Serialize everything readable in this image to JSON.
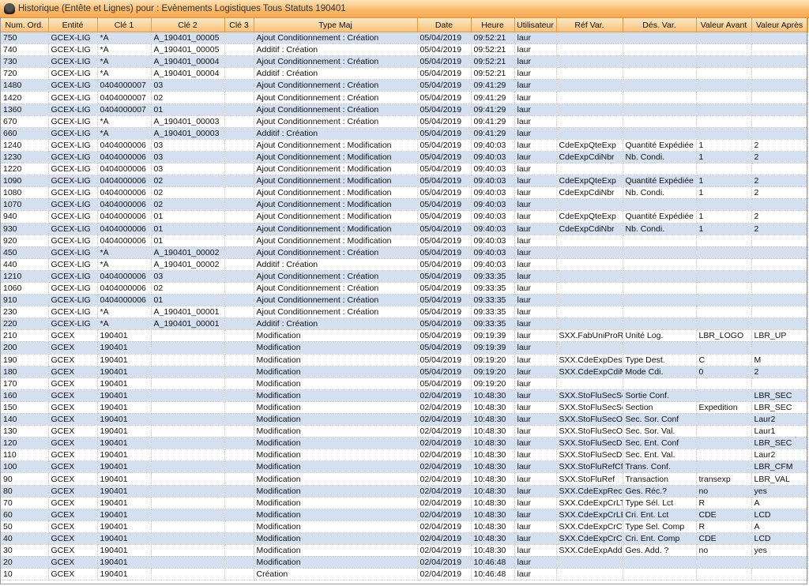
{
  "window": {
    "title": "Historique (Entête et Lignes) pour : Evènements  Logistiques Tous Statuts 190401",
    "icon": "app-hat-icon"
  },
  "colors": {
    "title_bar": "#f9b86a",
    "header": "#f8c27c",
    "row_alt": "#d4e0ef"
  },
  "columns": [
    "Num. Ord.",
    "Entité",
    "Clé 1",
    "Clé 2",
    "Clé 3",
    "Type Maj",
    "Date",
    "Heure",
    "Utilisateur",
    "Réf Var.",
    "Dés. Var.",
    "Valeur Avant",
    "Valeur Après"
  ],
  "rows": [
    [
      "750",
      "GCEX-LIG",
      "*A",
      "A_190401_00005",
      "",
      "Ajout Conditionnement : Création",
      "05/04/2019",
      "09:52:21",
      "laur",
      "",
      "",
      "",
      ""
    ],
    [
      "740",
      "GCEX-LIG",
      "*A",
      "A_190401_00005",
      "",
      "Additif : Création",
      "05/04/2019",
      "09:52:21",
      "laur",
      "",
      "",
      "",
      ""
    ],
    [
      "730",
      "GCEX-LIG",
      "*A",
      "A_190401_00004",
      "",
      "Ajout Conditionnement : Création",
      "05/04/2019",
      "09:52:21",
      "laur",
      "",
      "",
      "",
      ""
    ],
    [
      "720",
      "GCEX-LIG",
      "*A",
      "A_190401_00004",
      "",
      "Additif : Création",
      "05/04/2019",
      "09:52:21",
      "laur",
      "",
      "",
      "",
      ""
    ],
    [
      "1480",
      "GCEX-LIG",
      "0404000007",
      "03",
      "",
      "Ajout Conditionnement : Création",
      "05/04/2019",
      "09:41:29",
      "laur",
      "",
      "",
      "",
      ""
    ],
    [
      "1420",
      "GCEX-LIG",
      "0404000007",
      "02",
      "",
      "Ajout Conditionnement : Création",
      "05/04/2019",
      "09:41:29",
      "laur",
      "",
      "",
      "",
      ""
    ],
    [
      "1360",
      "GCEX-LIG",
      "0404000007",
      "01",
      "",
      "Ajout Conditionnement : Création",
      "05/04/2019",
      "09:41:29",
      "laur",
      "",
      "",
      "",
      ""
    ],
    [
      "670",
      "GCEX-LIG",
      "*A",
      "A_190401_00003",
      "",
      "Ajout Conditionnement : Création",
      "05/04/2019",
      "09:41:29",
      "laur",
      "",
      "",
      "",
      ""
    ],
    [
      "660",
      "GCEX-LIG",
      "*A",
      "A_190401_00003",
      "",
      "Additif : Création",
      "05/04/2019",
      "09:41:29",
      "laur",
      "",
      "",
      "",
      ""
    ],
    [
      "1240",
      "GCEX-LIG",
      "0404000006",
      "03",
      "",
      "Ajout Conditionnement : Modification",
      "05/04/2019",
      "09:40:03",
      "laur",
      "CdeExpQteExp",
      "Quantité Expédiée",
      "1",
      "2"
    ],
    [
      "1230",
      "GCEX-LIG",
      "0404000006",
      "03",
      "",
      "Ajout Conditionnement : Modification",
      "05/04/2019",
      "09:40:03",
      "laur",
      "CdeExpCdiNbr",
      "Nb. Condi.",
      "1",
      "2"
    ],
    [
      "1220",
      "GCEX-LIG",
      "0404000006",
      "03",
      "",
      "Ajout Conditionnement : Modification",
      "05/04/2019",
      "09:40:03",
      "laur",
      "",
      "",
      "",
      ""
    ],
    [
      "1090",
      "GCEX-LIG",
      "0404000006",
      "02",
      "",
      "Ajout Conditionnement : Modification",
      "05/04/2019",
      "09:40:03",
      "laur",
      "CdeExpQteExp",
      "Quantité Expédiée",
      "1",
      "2"
    ],
    [
      "1080",
      "GCEX-LIG",
      "0404000006",
      "02",
      "",
      "Ajout Conditionnement : Modification",
      "05/04/2019",
      "09:40:03",
      "laur",
      "CdeExpCdiNbr",
      "Nb. Condi.",
      "1",
      "2"
    ],
    [
      "1070",
      "GCEX-LIG",
      "0404000006",
      "02",
      "",
      "Ajout Conditionnement : Modification",
      "05/04/2019",
      "09:40:03",
      "laur",
      "",
      "",
      "",
      ""
    ],
    [
      "940",
      "GCEX-LIG",
      "0404000006",
      "01",
      "",
      "Ajout Conditionnement : Modification",
      "05/04/2019",
      "09:40:03",
      "laur",
      "CdeExpQteExp",
      "Quantité Expédiée",
      "1",
      "2"
    ],
    [
      "930",
      "GCEX-LIG",
      "0404000006",
      "01",
      "",
      "Ajout Conditionnement : Modification",
      "05/04/2019",
      "09:40:03",
      "laur",
      "CdeExpCdiNbr",
      "Nb. Condi.",
      "1",
      "2"
    ],
    [
      "920",
      "GCEX-LIG",
      "0404000006",
      "01",
      "",
      "Ajout Conditionnement : Modification",
      "05/04/2019",
      "09:40:03",
      "laur",
      "",
      "",
      "",
      ""
    ],
    [
      "450",
      "GCEX-LIG",
      "*A",
      "A_190401_00002",
      "",
      "Ajout Conditionnement : Création",
      "05/04/2019",
      "09:40:03",
      "laur",
      "",
      "",
      "",
      ""
    ],
    [
      "440",
      "GCEX-LIG",
      "*A",
      "A_190401_00002",
      "",
      "Additif : Création",
      "05/04/2019",
      "09:40:03",
      "laur",
      "",
      "",
      "",
      ""
    ],
    [
      "1210",
      "GCEX-LIG",
      "0404000006",
      "03",
      "",
      "Ajout Conditionnement : Création",
      "05/04/2019",
      "09:33:35",
      "laur",
      "",
      "",
      "",
      ""
    ],
    [
      "1060",
      "GCEX-LIG",
      "0404000006",
      "02",
      "",
      "Ajout Conditionnement : Création",
      "05/04/2019",
      "09:33:35",
      "laur",
      "",
      "",
      "",
      ""
    ],
    [
      "910",
      "GCEX-LIG",
      "0404000006",
      "01",
      "",
      "Ajout Conditionnement : Création",
      "05/04/2019",
      "09:33:35",
      "laur",
      "",
      "",
      "",
      ""
    ],
    [
      "230",
      "GCEX-LIG",
      "*A",
      "A_190401_00001",
      "",
      "Ajout Conditionnement : Création",
      "05/04/2019",
      "09:33:35",
      "laur",
      "",
      "",
      "",
      ""
    ],
    [
      "220",
      "GCEX-LIG",
      "*A",
      "A_190401_00001",
      "",
      "Additif : Création",
      "05/04/2019",
      "09:33:35",
      "laur",
      "",
      "",
      "",
      ""
    ],
    [
      "210",
      "GCEX",
      "190401",
      "",
      "",
      "Modification",
      "05/04/2019",
      "09:19:39",
      "laur",
      "SXX.FabUniProRe",
      "Unité Log.",
      "LBR_LOGO",
      "LBR_UP"
    ],
    [
      "200",
      "GCEX",
      "190401",
      "",
      "",
      "Modification",
      "05/04/2019",
      "09:19:39",
      "laur",
      "",
      "",
      "",
      ""
    ],
    [
      "190",
      "GCEX",
      "190401",
      "",
      "",
      "Modification",
      "05/04/2019",
      "09:19:20",
      "laur",
      "SXX.CdeExpDesT",
      "Type Dest.",
      "C",
      "M"
    ],
    [
      "180",
      "GCEX",
      "190401",
      "",
      "",
      "Modification",
      "05/04/2019",
      "09:19:20",
      "laur",
      "SXX.CdeExpCdiM",
      "Mode Cdi.",
      "0",
      "2"
    ],
    [
      "170",
      "GCEX",
      "190401",
      "",
      "",
      "Modification",
      "05/04/2019",
      "09:19:20",
      "laur",
      "",
      "",
      "",
      ""
    ],
    [
      "160",
      "GCEX",
      "190401",
      "",
      "",
      "Modification",
      "02/04/2019",
      "10:48:30",
      "laur",
      "SXX.StoFluSecSo",
      "Sortie Conf.",
      "",
      "LBR_SEC"
    ],
    [
      "150",
      "GCEX",
      "190401",
      "",
      "",
      "Modification",
      "02/04/2019",
      "10:48:30",
      "laur",
      "SXX.StoFluSecSo",
      "Section",
      "Expedition",
      "LBR_SEC"
    ],
    [
      "140",
      "GCEX",
      "190401",
      "",
      "",
      "Modification",
      "02/04/2019",
      "10:48:30",
      "laur",
      "SXX.StoFluSecOri",
      "Sec. Sor. Conf",
      "",
      "Laur2"
    ],
    [
      "130",
      "GCEX",
      "190401",
      "",
      "",
      "Modification",
      "02/04/2019",
      "10:48:30",
      "laur",
      "SXX.StoFluSecOri",
      "Sec. Sor. Val.",
      "",
      "Laur1"
    ],
    [
      "120",
      "GCEX",
      "190401",
      "",
      "",
      "Modification",
      "02/04/2019",
      "10:48:30",
      "laur",
      "SXX.StoFluSecDe",
      "Sec. Ent. Conf",
      "",
      "LBR_SEC"
    ],
    [
      "110",
      "GCEX",
      "190401",
      "",
      "",
      "Modification",
      "02/04/2019",
      "10:48:30",
      "laur",
      "SXX.StoFluSecDe",
      "Sec. Ent. Val.",
      "",
      "Laur2"
    ],
    [
      "100",
      "GCEX",
      "190401",
      "",
      "",
      "Modification",
      "02/04/2019",
      "10:48:30",
      "laur",
      "SXX.StoFluRefCfn",
      "Trans. Conf.",
      "",
      "LBR_CFM"
    ],
    [
      "90",
      "GCEX",
      "190401",
      "",
      "",
      "Modification",
      "02/04/2019",
      "10:48:30",
      "laur",
      "SXX.StoFluRef",
      "Transaction",
      "transexp",
      "LBR_VAL"
    ],
    [
      "80",
      "GCEX",
      "190401",
      "",
      "",
      "Modification",
      "02/04/2019",
      "10:48:30",
      "laur",
      "SXX.CdeExpRec",
      "Ges. Réc.?",
      "no",
      "yes"
    ],
    [
      "70",
      "GCEX",
      "190401",
      "",
      "",
      "Modification",
      "02/04/2019",
      "10:48:30",
      "laur",
      "SXX.CdeExpCrLTy",
      "Type Sél. Lct",
      "R",
      "A"
    ],
    [
      "60",
      "GCEX",
      "190401",
      "",
      "",
      "Modification",
      "02/04/2019",
      "10:48:30",
      "laur",
      "SXX.CdeExpCrLEn",
      "Cri. Ent. Lct",
      "CDE",
      "LCD"
    ],
    [
      "50",
      "GCEX",
      "190401",
      "",
      "",
      "Modification",
      "02/04/2019",
      "10:48:30",
      "laur",
      "SXX.CdeExpCrCT",
      "Type Sel. Comp",
      "R",
      "A"
    ],
    [
      "40",
      "GCEX",
      "190401",
      "",
      "",
      "Modification",
      "02/04/2019",
      "10:48:30",
      "laur",
      "SXX.CdeExpCrCE",
      "Cri. Ent. Comp",
      "CDE",
      "LCD"
    ],
    [
      "30",
      "GCEX",
      "190401",
      "",
      "",
      "Modification",
      "02/04/2019",
      "10:48:30",
      "laur",
      "SXX.CdeExpAddG",
      "Ges. Add. ?",
      "no",
      "yes"
    ],
    [
      "20",
      "GCEX",
      "190401",
      "",
      "",
      "Modification",
      "02/04/2019",
      "10:46:48",
      "laur",
      "",
      "",
      "",
      ""
    ],
    [
      "10",
      "GCEX",
      "190401",
      "",
      "",
      "Création",
      "02/04/2019",
      "10:46:48",
      "laur",
      "",
      "",
      "",
      ""
    ]
  ]
}
